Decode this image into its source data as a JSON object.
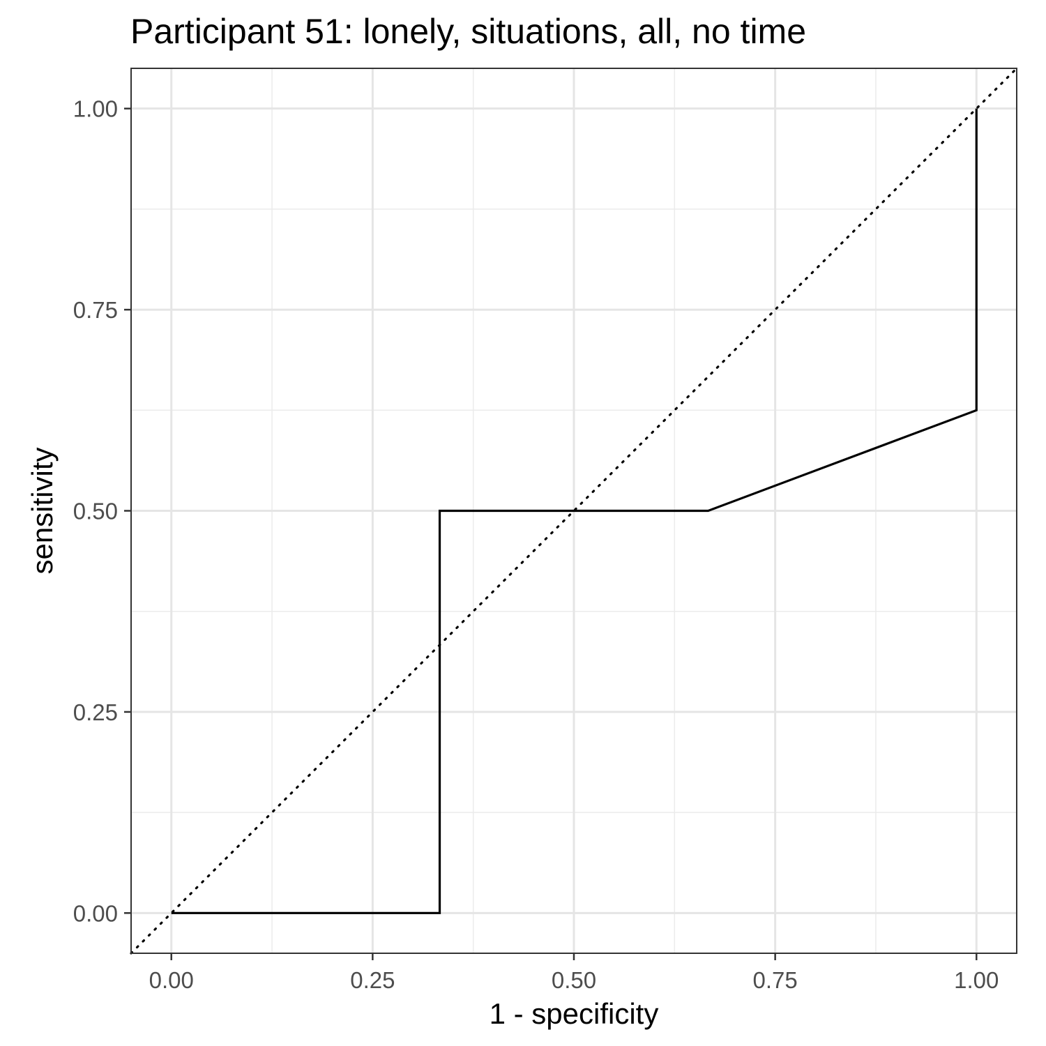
{
  "chart_data": {
    "type": "line",
    "title": "Participant 51: lonely, situations, all, no time",
    "xlabel": "1 - specificity",
    "ylabel": "sensitivity",
    "xlim": [
      -0.05,
      1.05
    ],
    "ylim": [
      -0.05,
      1.05
    ],
    "x_ticks": [
      0.0,
      0.25,
      0.5,
      0.75,
      1.0
    ],
    "y_ticks": [
      0.0,
      0.25,
      0.5,
      0.75,
      1.0
    ],
    "x_tick_labels": [
      "0.00",
      "0.25",
      "0.50",
      "0.75",
      "1.00"
    ],
    "y_tick_labels": [
      "0.00",
      "0.25",
      "0.50",
      "0.75",
      "1.00"
    ],
    "grid": true,
    "series": [
      {
        "style": "solid",
        "color": "#000000",
        "x": [
          0.0,
          0.3333,
          0.3333,
          0.6667,
          1.0,
          1.0
        ],
        "y": [
          0.0,
          0.0,
          0.5,
          0.5,
          0.625,
          1.0
        ]
      }
    ],
    "reference_line": {
      "style": "dotted",
      "color": "#000000",
      "slope": 1,
      "intercept": 0
    }
  }
}
